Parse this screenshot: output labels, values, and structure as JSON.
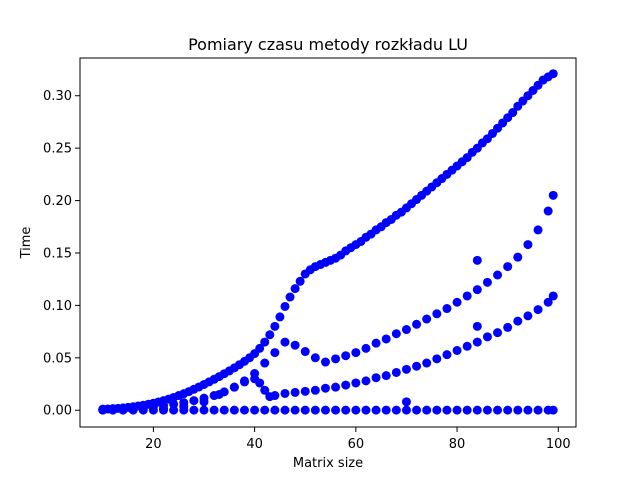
{
  "chart_data": {
    "type": "scatter",
    "title": "Pomiary czasu metody rozkładu LU",
    "xlabel": "Matrix size",
    "ylabel": "Time",
    "xlim": [
      5.5,
      103.5
    ],
    "ylim": [
      -0.016,
      0.336
    ],
    "x_ticks": [
      20,
      40,
      60,
      80,
      100
    ],
    "x_tick_labels": [
      "20",
      "40",
      "60",
      "80",
      "100"
    ],
    "y_ticks": [
      0.0,
      0.05,
      0.1,
      0.15,
      0.2,
      0.25,
      0.3
    ],
    "y_tick_labels": [
      "0.00",
      "0.05",
      "0.10",
      "0.15",
      "0.20",
      "0.25",
      "0.30"
    ],
    "grid": false,
    "marker_color": "#0000ff",
    "series": [
      {
        "x": [
          10,
          11,
          12,
          13,
          14,
          15,
          16,
          17,
          18,
          19,
          20,
          21,
          22,
          23,
          24,
          25,
          26,
          27,
          28,
          29,
          30,
          31,
          32,
          33,
          34,
          35,
          36,
          37,
          38,
          39,
          40,
          41,
          42,
          43,
          44,
          45,
          46,
          47,
          48,
          49,
          50,
          51,
          52,
          53,
          54,
          55,
          56,
          57,
          58,
          59,
          60,
          61,
          62,
          63,
          64,
          65,
          66,
          67,
          68,
          69,
          70,
          71,
          72,
          73,
          74,
          75,
          76,
          77,
          78,
          79,
          80,
          81,
          82,
          83,
          84,
          85,
          86,
          87,
          88,
          89,
          90,
          91,
          92,
          93,
          94,
          95,
          96,
          97,
          98,
          99
        ],
        "y": [
          0.001,
          0.0012,
          0.0015,
          0.0018,
          0.0022,
          0.0027,
          0.0033,
          0.004,
          0.0048,
          0.0057,
          0.0067,
          0.0079,
          0.0092,
          0.0106,
          0.0122,
          0.014,
          0.0158,
          0.0178,
          0.02,
          0.0222,
          0.0246,
          0.027,
          0.0295,
          0.0321,
          0.0348,
          0.0375,
          0.0404,
          0.0434,
          0.0466,
          0.05,
          0.054,
          0.059,
          0.065,
          0.072,
          0.08,
          0.089,
          0.099,
          0.108,
          0.116,
          0.123,
          0.13,
          0.134,
          0.137,
          0.139,
          0.141,
          0.143,
          0.145,
          0.148,
          0.152,
          0.155,
          0.158,
          0.161,
          0.165,
          0.168,
          0.172,
          0.175,
          0.179,
          0.182,
          0.186,
          0.189,
          0.193,
          0.197,
          0.201,
          0.205,
          0.209,
          0.213,
          0.217,
          0.221,
          0.225,
          0.229,
          0.233,
          0.237,
          0.241,
          0.246,
          0.25,
          0.255,
          0.259,
          0.264,
          0.269,
          0.274,
          0.279,
          0.284,
          0.29,
          0.295,
          0.3,
          0.305,
          0.31,
          0.315,
          0.318,
          0.321
        ]
      },
      {
        "x": [
          10,
          12,
          14,
          16,
          18,
          20,
          22,
          24,
          26,
          28,
          30,
          32,
          34,
          36,
          38,
          40,
          42,
          44,
          46,
          48,
          50,
          52,
          54,
          56,
          58,
          60,
          62,
          64,
          66,
          68,
          70,
          72,
          74,
          76,
          78,
          80,
          82,
          84,
          86,
          88,
          90,
          92,
          94,
          96,
          98,
          99
        ],
        "y": [
          0.0005,
          0.0008,
          0.0012,
          0.0018,
          0.0025,
          0.0034,
          0.0045,
          0.0058,
          0.0073,
          0.0092,
          0.0115,
          0.014,
          0.0175,
          0.022,
          0.028,
          0.035,
          0.045,
          0.055,
          0.065,
          0.062,
          0.056,
          0.05,
          0.046,
          0.049,
          0.052,
          0.055,
          0.059,
          0.064,
          0.068,
          0.073,
          0.077,
          0.082,
          0.087,
          0.092,
          0.097,
          0.103,
          0.109,
          0.115,
          0.122,
          0.129,
          0.137,
          0.146,
          0.158,
          0.172,
          0.19,
          0.205
        ]
      },
      {
        "x": [
          10,
          14,
          18,
          22,
          26,
          30,
          33,
          36,
          38,
          40,
          41,
          42,
          43,
          44,
          46,
          48,
          50,
          52,
          54,
          56,
          58,
          60,
          62,
          64,
          66,
          68,
          70,
          72,
          74,
          76,
          78,
          80,
          82,
          84,
          86,
          88,
          90,
          92,
          94,
          96,
          98,
          99
        ],
        "y": [
          0.0003,
          0.0006,
          0.001,
          0.0018,
          0.0035,
          0.008,
          0.015,
          0.022,
          0.027,
          0.03,
          0.026,
          0.019,
          0.013,
          0.014,
          0.016,
          0.017,
          0.018,
          0.019,
          0.021,
          0.022,
          0.024,
          0.026,
          0.028,
          0.031,
          0.033,
          0.036,
          0.039,
          0.042,
          0.045,
          0.049,
          0.053,
          0.057,
          0.061,
          0.065,
          0.07,
          0.074,
          0.079,
          0.085,
          0.09,
          0.096,
          0.103,
          0.109
        ]
      },
      {
        "x": [
          10,
          12,
          14,
          16,
          18,
          20,
          22,
          24,
          26,
          28,
          30,
          32,
          34,
          36,
          38,
          40,
          42,
          44,
          46,
          48,
          50,
          52,
          54,
          56,
          58,
          60,
          62,
          64,
          66,
          68,
          70,
          72,
          74,
          76,
          78,
          80,
          82,
          84,
          86,
          88,
          90,
          92,
          94,
          96,
          98,
          99
        ],
        "y": [
          0.0001,
          0.0001,
          0.0001,
          0.0001,
          0.0001,
          0.0001,
          0.0001,
          0.0001,
          0.0001,
          0.0001,
          0.0001,
          0.0001,
          0.0001,
          0.0001,
          0.0001,
          0.0001,
          0.0001,
          0.0001,
          0.0001,
          0.0001,
          0.0001,
          0.0001,
          0.0001,
          0.0001,
          0.0001,
          0.0001,
          0.0001,
          0.0001,
          0.0001,
          0.0001,
          0.0001,
          0.0001,
          0.0001,
          0.0001,
          0.0001,
          0.0001,
          0.0001,
          0.0001,
          0.0001,
          0.0001,
          0.0001,
          0.0001,
          0.0001,
          0.0001,
          0.0001,
          0.0001
        ]
      },
      {
        "x": [
          84,
          84,
          70
        ],
        "y": [
          0.143,
          0.08,
          0.008
        ]
      }
    ]
  }
}
